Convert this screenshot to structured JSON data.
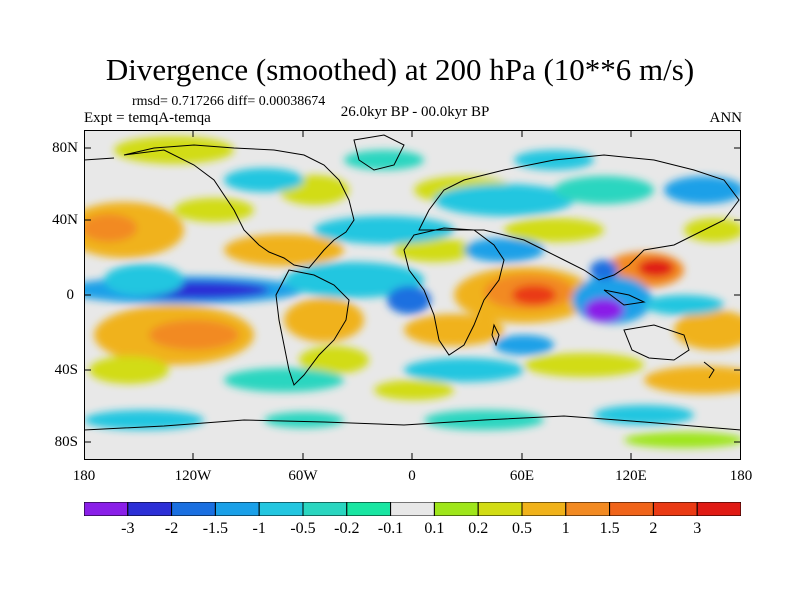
{
  "title": "Divergence (smoothed) at 200 hPa (10**6 m/s)",
  "stats": "rmsd= 0.717266 diff= 0.00038674",
  "experiment": "Expt = temqA-temqa",
  "period": "26.0kyr BP - 00.0kyr BP",
  "season": "ANN",
  "lat_ticks": [
    "80N",
    "40N",
    "0",
    "40S",
    "80S"
  ],
  "lon_ticks": [
    "180",
    "120W",
    "60W",
    "0",
    "60E",
    "120E",
    "180"
  ],
  "colorbar": {
    "labels": [
      "-3",
      "-2",
      "-1.5",
      "-1",
      "-0.5",
      "-0.2",
      "-0.1",
      "0.1",
      "0.2",
      "0.5",
      "1",
      "1.5",
      "2",
      "3"
    ],
    "colors": [
      "#8a1fe8",
      "#2c2fd6",
      "#1a6fe0",
      "#1aa0e8",
      "#23c6e0",
      "#2ad6c0",
      "#19e6a2",
      "#e8e8e8",
      "#9fe61a",
      "#d2dc14",
      "#f0b21a",
      "#f28a22",
      "#f0641a",
      "#ea3a14",
      "#e01a14"
    ]
  },
  "field_colors": {
    "land_line": "#000000",
    "background": "#e8e8e8"
  }
}
